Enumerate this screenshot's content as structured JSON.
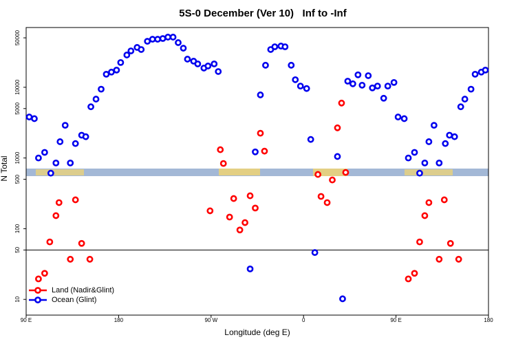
{
  "chart_data": {
    "type": "scatter",
    "title": "5S-0 December (Ver 10)   Inf to -Inf",
    "x_label": "Longitude (deg E)",
    "y_label": "N Total",
    "xlim": [
      90,
      540
    ],
    "xticks": [
      {
        "value": 90,
        "label": "90 E"
      },
      180,
      {
        "value": 270,
        "label": "90 W"
      },
      {
        "value": 360,
        "label": "0"
      },
      {
        "value": 450,
        "label": "90 E"
      },
      {
        "value": 540,
        "label": "180"
      }
    ],
    "ylim": [
      6,
      70000
    ],
    "yscale": "log",
    "yticks": [
      10,
      50,
      100,
      500,
      1000,
      5000,
      10000,
      50000
    ],
    "hline": 50,
    "legend": "bottom-left",
    "series": [
      {
        "name": "Land (Nadir&Glint)",
        "color": "#ff0000",
        "x": [
          102,
          108,
          113,
          119,
          122,
          133,
          138,
          144,
          152,
          269,
          279,
          282,
          288,
          292,
          298,
          303,
          308,
          313,
          318,
          322,
          374,
          377,
          383,
          388,
          393,
          397,
          401,
          462,
          468,
          473,
          478,
          482,
          492,
          497,
          503,
          511
        ],
        "values": [
          19.5,
          23.4,
          65,
          153,
          234,
          37,
          256,
          62,
          37,
          179,
          1310,
          836,
          146,
          267,
          96,
          122,
          292,
          196,
          2240,
          1250,
          585,
          286,
          234,
          489,
          2670,
          5980,
          625,
          19.5,
          23.4,
          65,
          153,
          234,
          37,
          256,
          62,
          37
        ]
      },
      {
        "name": "Ocean (Glint)",
        "color": "#0000ee",
        "x": [
          93,
          98,
          102,
          108,
          114,
          119,
          123,
          128,
          133,
          138,
          144,
          148,
          153,
          158,
          163,
          168,
          173,
          178,
          182,
          188,
          192,
          198,
          202,
          208,
          213,
          218,
          223,
          228,
          233,
          238,
          243,
          247,
          253,
          257,
          263,
          267,
          273,
          277,
          308,
          313,
          318,
          323,
          328,
          332,
          338,
          342,
          348,
          352,
          357,
          363,
          367,
          371,
          393,
          398,
          403,
          408,
          413,
          417,
          423,
          427,
          432,
          438,
          442,
          448,
          452,
          458,
          462,
          468,
          473,
          478,
          482,
          487,
          492,
          498,
          502,
          507,
          513,
          517,
          523,
          527,
          533,
          537
        ],
        "values": [
          3800,
          3600,
          1000,
          1200,
          610,
          850,
          1700,
          2900,
          850,
          1600,
          2100,
          2000,
          5300,
          6800,
          9400,
          15300,
          16400,
          17500,
          22400,
          28600,
          32700,
          36600,
          34200,
          44700,
          47800,
          47800,
          48900,
          51200,
          51200,
          42800,
          35700,
          25000,
          23400,
          21400,
          18700,
          20000,
          21400,
          16700,
          27,
          1220,
          7800,
          20500,
          34200,
          37400,
          38300,
          37400,
          20500,
          12800,
          10400,
          9600,
          1830,
          46,
          1050,
          10.2,
          12200,
          11200,
          15000,
          10700,
          14600,
          9800,
          10400,
          7000,
          10400,
          11700,
          3800,
          3600,
          1000,
          1200,
          610,
          850,
          1700,
          2900,
          850,
          1600,
          2100,
          2000,
          5300,
          6800,
          9400,
          15300,
          16400,
          17500
        ]
      }
    ]
  }
}
